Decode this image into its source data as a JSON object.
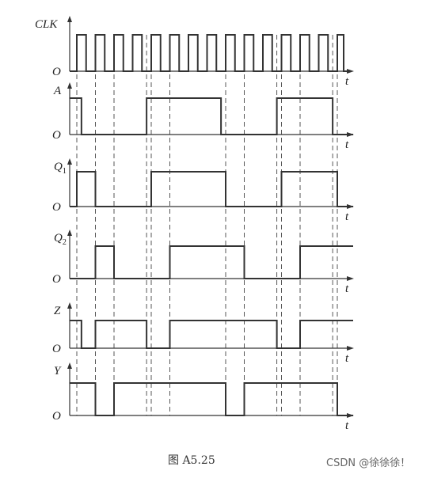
{
  "signals": [
    {
      "id": "clk",
      "label": "CLK",
      "sub": ""
    },
    {
      "id": "a",
      "label": "A",
      "sub": ""
    },
    {
      "id": "q1",
      "label": "Q",
      "sub": "1"
    },
    {
      "id": "q2",
      "label": "Q",
      "sub": "2"
    },
    {
      "id": "z",
      "label": "Z",
      "sub": ""
    },
    {
      "id": "y",
      "label": "Y",
      "sub": ""
    }
  ],
  "zero_label": "O",
  "time_label": "t",
  "caption": "图 A5.25",
  "watermark": "CSDN @徐徐徐！",
  "timing": {
    "clk_cycles": 14,
    "waves": {
      "a": {
        "initial": 1,
        "transitions": [
          0.25,
          3.75,
          7.75,
          10.75,
          13.75
        ]
      },
      "q1": {
        "initial": 0,
        "transitions": [
          0,
          1,
          4,
          8,
          11,
          14
        ]
      },
      "q2": {
        "initial": 0,
        "transitions": [
          1,
          2,
          5,
          9,
          12
        ]
      },
      "z": {
        "initial": 1,
        "transitions": [
          0.25,
          1,
          3.75,
          5,
          10.75,
          12
        ]
      },
      "y": {
        "initial": 1,
        "transitions": [
          1,
          2,
          8,
          9,
          14
        ]
      }
    }
  }
}
